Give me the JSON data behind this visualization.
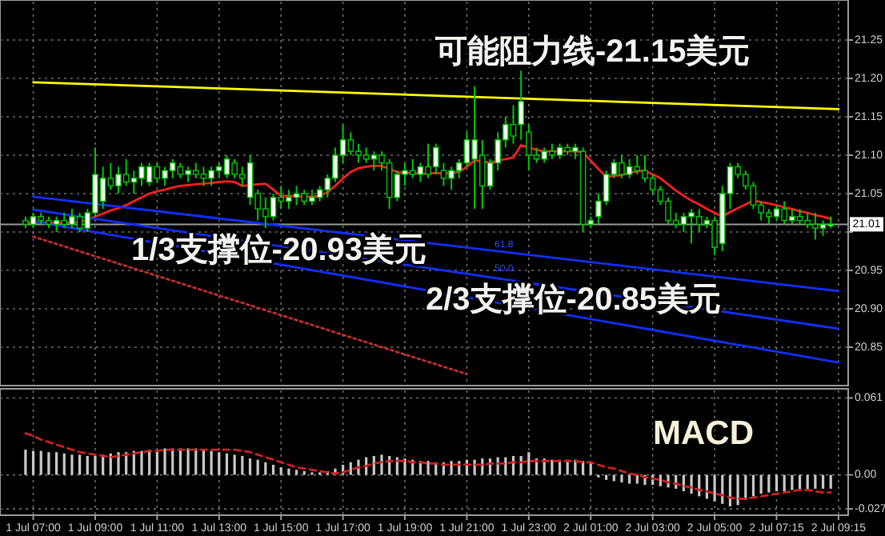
{
  "chart_data": [
    {
      "type": "candlestick",
      "color": "#00c800",
      "categories": [
        null,
        "1 Jul 07:00",
        null,
        null,
        null,
        null,
        null,
        null,
        null,
        "1 Jul 09:00",
        null,
        null,
        null,
        null,
        null,
        null,
        null,
        "1 Jul 11:00",
        null,
        null,
        null,
        null,
        null,
        null,
        null,
        "1 Jul 13:00",
        null,
        null,
        null,
        null,
        null,
        null,
        null,
        "1 Jul 15:00",
        null,
        null,
        null,
        null,
        null,
        null,
        null,
        "1 Jul 17:00",
        null,
        null,
        null,
        null,
        null,
        null,
        null,
        "1 Jul 19:00",
        null,
        null,
        null,
        null,
        null,
        null,
        null,
        "1 Jul 21:00",
        null,
        null,
        null,
        null,
        null,
        null,
        null,
        "1 Jul 23:00",
        null,
        null,
        null,
        null,
        null,
        null,
        null,
        "2 Jul 01:00",
        null,
        null,
        null,
        null,
        null,
        null,
        null,
        "2 Jul 03:00",
        null,
        null,
        null,
        null,
        null,
        null,
        null,
        "2 Jul 05:00",
        null,
        null,
        null,
        null,
        null,
        null,
        null,
        "2 Jul 07:15",
        null,
        null,
        null,
        null,
        null,
        null,
        null,
        "2 Jul 09:15"
      ],
      "ohlc": [
        [
          21.015,
          21.02,
          21.005,
          21.01
        ],
        [
          21.01,
          21.025,
          21.005,
          21.02
        ],
        [
          21.02,
          21.025,
          21.01,
          21.015
        ],
        [
          21.015,
          21.02,
          21.005,
          21.01
        ],
        [
          21.01,
          21.02,
          21.0,
          21.015
        ],
        [
          21.015,
          21.025,
          21.005,
          21.01
        ],
        [
          21.01,
          21.03,
          21.005,
          21.02
        ],
        [
          21.02,
          21.025,
          21.0,
          21.005
        ],
        [
          21.005,
          21.03,
          21.0,
          21.025
        ],
        [
          21.025,
          21.11,
          21.02,
          21.075
        ],
        [
          21.04,
          21.085,
          21.03,
          21.07
        ],
        [
          21.07,
          21.09,
          21.055,
          21.06
        ],
        [
          21.06,
          21.085,
          21.05,
          21.075
        ],
        [
          21.075,
          21.095,
          21.06,
          21.065
        ],
        [
          21.065,
          21.08,
          21.05,
          21.07
        ],
        [
          21.07,
          21.09,
          21.06,
          21.085
        ],
        [
          21.065,
          21.09,
          21.06,
          21.085
        ],
        [
          21.085,
          21.09,
          21.065,
          21.07
        ],
        [
          21.07,
          21.085,
          21.06,
          21.08
        ],
        [
          21.08,
          21.095,
          21.07,
          21.09
        ],
        [
          21.085,
          21.09,
          21.07,
          21.075
        ],
        [
          21.075,
          21.085,
          21.065,
          21.08
        ],
        [
          21.08,
          21.09,
          21.07,
          21.075
        ],
        [
          21.075,
          21.085,
          21.06,
          21.07
        ],
        [
          21.07,
          21.085,
          21.06,
          21.08
        ],
        [
          21.08,
          21.09,
          21.07,
          21.085
        ],
        [
          21.075,
          21.1,
          21.07,
          21.095
        ],
        [
          21.09,
          21.095,
          21.07,
          21.075
        ],
        [
          21.075,
          21.085,
          21.06,
          21.07
        ],
        [
          21.045,
          21.1,
          21.035,
          21.09
        ],
        [
          21.05,
          21.055,
          21.015,
          21.03
        ],
        [
          21.03,
          21.045,
          21.005,
          21.02
        ],
        [
          21.02,
          21.05,
          21.015,
          21.045
        ],
        [
          21.045,
          21.06,
          21.03,
          21.04
        ],
        [
          21.04,
          21.055,
          21.03,
          21.045
        ],
        [
          21.045,
          21.06,
          21.035,
          21.05
        ],
        [
          21.05,
          21.055,
          21.035,
          21.04
        ],
        [
          21.04,
          21.055,
          21.035,
          21.045
        ],
        [
          21.045,
          21.06,
          21.04,
          21.055
        ],
        [
          21.055,
          21.075,
          21.045,
          21.07
        ],
        [
          21.07,
          21.11,
          21.065,
          21.1
        ],
        [
          21.1,
          21.14,
          21.09,
          21.12
        ],
        [
          21.12,
          21.13,
          21.1,
          21.105
        ],
        [
          21.105,
          21.115,
          21.09,
          21.1
        ],
        [
          21.1,
          21.11,
          21.09,
          21.095
        ],
        [
          21.095,
          21.105,
          21.08,
          21.1
        ],
        [
          21.1,
          21.105,
          21.08,
          21.09
        ],
        [
          21.09,
          21.095,
          21.03,
          21.045
        ],
        [
          21.045,
          21.08,
          21.04,
          21.075
        ],
        [
          21.075,
          21.09,
          21.06,
          21.08
        ],
        [
          21.08,
          21.095,
          21.07,
          21.075
        ],
        [
          21.075,
          21.09,
          21.065,
          21.085
        ],
        [
          21.085,
          21.115,
          21.07,
          21.075
        ],
        [
          21.085,
          21.115,
          21.075,
          21.11
        ],
        [
          21.08,
          21.09,
          21.06,
          21.07
        ],
        [
          21.07,
          21.085,
          21.055,
          21.08
        ],
        [
          21.08,
          21.095,
          21.07,
          21.09
        ],
        [
          21.09,
          21.13,
          21.085,
          21.12
        ],
        [
          21.095,
          21.19,
          21.03,
          21.12
        ],
        [
          21.1,
          21.12,
          21.03,
          21.06
        ],
        [
          21.06,
          21.095,
          21.055,
          21.09
        ],
        [
          21.09,
          21.13,
          21.08,
          21.12
        ],
        [
          21.12,
          21.15,
          21.11,
          21.14
        ],
        [
          21.14,
          21.165,
          21.115,
          21.125
        ],
        [
          21.14,
          21.21,
          21.12,
          21.17
        ],
        [
          21.13,
          21.14,
          21.08,
          21.1
        ],
        [
          21.1,
          21.11,
          21.09,
          21.095
        ],
        [
          21.095,
          21.11,
          21.09,
          21.105
        ],
        [
          21.105,
          21.115,
          21.095,
          21.1
        ],
        [
          21.1,
          21.115,
          21.095,
          21.11
        ],
        [
          21.11,
          21.115,
          21.1,
          21.105
        ],
        [
          21.105,
          21.115,
          21.095,
          21.11
        ],
        [
          21.105,
          21.11,
          21.0,
          21.01
        ],
        [
          21.01,
          21.02,
          21.005,
          21.015
        ],
        [
          21.02,
          21.05,
          21.01,
          21.04
        ],
        [
          21.04,
          21.08,
          21.035,
          21.075
        ],
        [
          21.075,
          21.095,
          21.07,
          21.09
        ],
        [
          21.09,
          21.1,
          21.07,
          21.075
        ],
        [
          21.075,
          21.095,
          21.07,
          21.085
        ],
        [
          21.085,
          21.1,
          21.075,
          21.08
        ],
        [
          21.08,
          21.1,
          21.065,
          21.07
        ],
        [
          21.07,
          21.075,
          21.05,
          21.055
        ],
        [
          21.055,
          21.06,
          21.035,
          21.04
        ],
        [
          21.04,
          21.045,
          21.01,
          21.015
        ],
        [
          21.015,
          21.025,
          21.005,
          21.01
        ],
        [
          21.01,
          21.025,
          21.0,
          21.02
        ],
        [
          21.02,
          21.03,
          20.985,
          21.025
        ],
        [
          21.02,
          21.03,
          21.0,
          21.01
        ],
        [
          21.01,
          21.02,
          21.005,
          21.015
        ],
        [
          21.015,
          21.02,
          20.97,
          20.98
        ],
        [
          20.985,
          21.06,
          20.975,
          21.05
        ],
        [
          21.05,
          21.09,
          21.03,
          21.085
        ],
        [
          21.085,
          21.09,
          21.07,
          21.075
        ],
        [
          21.075,
          21.08,
          21.055,
          21.06
        ],
        [
          21.06,
          21.065,
          21.03,
          21.035
        ],
        [
          21.035,
          21.04,
          21.015,
          21.025
        ],
        [
          21.025,
          21.03,
          21.01,
          21.02
        ],
        [
          21.02,
          21.035,
          21.015,
          21.03
        ],
        [
          21.03,
          21.04,
          21.01,
          21.015
        ],
        [
          21.015,
          21.03,
          21.01,
          21.02
        ],
        [
          21.02,
          21.03,
          21.01,
          21.015
        ],
        [
          21.015,
          21.025,
          21.005,
          21.01
        ],
        [
          21.01,
          21.025,
          20.99,
          21.005
        ],
        [
          21.005,
          21.015,
          20.995,
          21.01
        ],
        [
          21.01,
          21.02,
          21.005,
          21.01
        ],
        null
      ],
      "series": [
        {
          "type": "line",
          "color": "#ff2020",
          "values": [
            21.012,
            21.012,
            21.012,
            21.012,
            21.012,
            21.012,
            21.012,
            21.013,
            21.016,
            21.02,
            21.024,
            21.028,
            21.031,
            21.035,
            21.04,
            21.045,
            21.05,
            21.053,
            21.055,
            21.058,
            21.06,
            21.061,
            21.062,
            21.063,
            21.064,
            21.065,
            21.066,
            21.065,
            21.06,
            21.061,
            21.062,
            21.063,
            21.055,
            21.047,
            21.047,
            21.047,
            21.046,
            21.046,
            21.047,
            21.052,
            21.06,
            21.07,
            21.078,
            21.083,
            21.085,
            21.086,
            21.086,
            21.082,
            21.078,
            21.077,
            21.077,
            21.076,
            21.076,
            21.077,
            21.076,
            21.077,
            21.078,
            21.085,
            21.093,
            21.092,
            21.09,
            21.093,
            21.095,
            21.097,
            21.113,
            21.11,
            21.107,
            21.105,
            21.105,
            21.105,
            21.105,
            21.105,
            21.104,
            21.093,
            21.082,
            21.072,
            21.073,
            21.074,
            21.077,
            21.079,
            21.08,
            21.075,
            21.07,
            21.062,
            21.054,
            21.047,
            21.041,
            21.036,
            21.03,
            21.025,
            21.02,
            21.026,
            21.031,
            21.036,
            21.041,
            21.039,
            21.037,
            21.035,
            21.032,
            21.03,
            21.027,
            21.025,
            21.022,
            21.02,
            21.017,
            null
          ]
        },
        {
          "type": "line",
          "color": "#ffff00",
          "x": [
            "1 Jul 07:00",
            "2 Jul 09:15"
          ],
          "values": [
            21.195,
            21.16
          ]
        },
        {
          "type": "line",
          "color": "#1030ff",
          "x": [
            "1 Jul 07:00",
            "2 Jul 09:15"
          ],
          "values": [
            21.046,
            20.923
          ]
        },
        {
          "type": "line",
          "color": "#1030ff",
          "x": [
            "1 Jul 07:00",
            "2 Jul 09:15"
          ],
          "values": [
            21.029,
            20.874
          ]
        },
        {
          "type": "line",
          "color": "#1030ff",
          "x": [
            "1 Jul 07:00",
            "2 Jul 09:15"
          ],
          "values": [
            21.014,
            20.83
          ]
        },
        {
          "type": "line",
          "color": "#c03030",
          "line_style": "dotted",
          "x": [
            "1 Jul 07:00",
            "1 Jul 21:00"
          ],
          "values": [
            20.994,
            20.815
          ]
        }
      ],
      "ylim": [
        20.8,
        21.3
      ],
      "yticks": [
        20.85,
        {
          "value": 20.9,
          "label": "20.90"
        },
        20.95,
        {
          "value": 21.0,
          "label": null
        },
        21.05,
        {
          "value": 21.1,
          "label": "21.10"
        },
        21.15,
        {
          "value": 21.2,
          "label": "21.20"
        },
        21.25
      ],
      "grid": true,
      "tick_labels": "y",
      "ref_lines": [
        {
          "axis": "y",
          "value": 21.01,
          "label": "21.01",
          "color": "#9a9a9a"
        }
      ],
      "annotations": [
        "可能阻力线-21.15美元",
        "1/3支撑位-20.93美元",
        "2/3支撑位-20.85美元",
        "61.8",
        "50.0"
      ]
    },
    {
      "type": "bar",
      "categories": [
        null,
        "1 Jul 07:00",
        null,
        null,
        null,
        null,
        null,
        null,
        null,
        "1 Jul 09:00",
        null,
        null,
        null,
        null,
        null,
        null,
        null,
        "1 Jul 11:00",
        null,
        null,
        null,
        null,
        null,
        null,
        null,
        "1 Jul 13:00",
        null,
        null,
        null,
        null,
        null,
        null,
        null,
        "1 Jul 15:00",
        null,
        null,
        null,
        null,
        null,
        null,
        null,
        "1 Jul 17:00",
        null,
        null,
        null,
        null,
        null,
        null,
        null,
        "1 Jul 19:00",
        null,
        null,
        null,
        null,
        null,
        null,
        null,
        "1 Jul 21:00",
        null,
        null,
        null,
        null,
        null,
        null,
        null,
        "1 Jul 23:00",
        null,
        null,
        null,
        null,
        null,
        null,
        null,
        "2 Jul 01:00",
        null,
        null,
        null,
        null,
        null,
        null,
        null,
        "2 Jul 03:00",
        null,
        null,
        null,
        null,
        null,
        null,
        null,
        "2 Jul 05:00",
        null,
        null,
        null,
        null,
        null,
        null,
        null,
        "2 Jul 07:15",
        null,
        null,
        null,
        null,
        null,
        null,
        null,
        "2 Jul 09:15"
      ],
      "series": [
        {
          "type": "bar",
          "color": "#c8c8c8",
          "values": [
            0.02,
            0.019,
            0.019,
            0.018,
            0.018,
            0.017,
            0.016,
            0.016,
            0.015,
            0.015,
            0.016,
            0.017,
            0.018,
            0.018,
            0.019,
            0.019,
            0.02,
            0.02,
            0.021,
            0.021,
            0.021,
            0.021,
            0.021,
            0.02,
            0.019,
            0.018,
            0.017,
            0.016,
            0.015,
            0.013,
            0.012,
            0.01,
            0.008,
            0.006,
            0.005,
            0.004,
            0.003,
            0.002,
            0.002,
            0.003,
            0.005,
            0.008,
            0.01,
            0.012,
            0.014,
            0.015,
            0.016,
            0.015,
            0.014,
            0.013,
            0.012,
            0.011,
            0.011,
            0.01,
            0.01,
            0.011,
            0.011,
            0.012,
            0.012,
            0.013,
            0.013,
            0.014,
            0.014,
            0.015,
            0.015,
            0.018,
            0.013,
            0.013,
            0.012,
            0.012,
            0.012,
            0.012,
            0.011,
            0.01,
            -0.002,
            -0.004,
            -0.005,
            -0.006,
            -0.007,
            -0.007,
            -0.008,
            -0.008,
            -0.009,
            -0.01,
            -0.011,
            -0.013,
            -0.015,
            -0.017,
            -0.019,
            -0.021,
            -0.023,
            -0.025,
            -0.024,
            -0.02,
            -0.017,
            -0.015,
            -0.014,
            -0.013,
            -0.013,
            -0.012,
            -0.012,
            -0.012,
            -0.011,
            -0.011,
            -0.011,
            null
          ]
        },
        {
          "type": "line",
          "color": "#d02020",
          "line_style": "dashed",
          "values": [
            0.033,
            0.031,
            0.028,
            0.026,
            0.024,
            0.022,
            0.02,
            0.018,
            0.017,
            0.016,
            0.015,
            0.014,
            0.015,
            0.016,
            0.017,
            0.018,
            0.019,
            0.019,
            0.02,
            0.02,
            0.02,
            0.02,
            0.02,
            0.02,
            0.02,
            0.02,
            0.02,
            0.02,
            0.019,
            0.018,
            0.016,
            0.014,
            0.012,
            0.01,
            0.008,
            0.006,
            0.005,
            0.004,
            0.003,
            0.002,
            0.001,
            0.002,
            0.004,
            0.006,
            0.007,
            0.009,
            0.01,
            0.011,
            0.011,
            0.011,
            0.01,
            0.01,
            0.009,
            0.009,
            0.008,
            0.008,
            0.008,
            0.008,
            0.008,
            0.008,
            0.009,
            0.009,
            0.009,
            0.01,
            0.01,
            0.011,
            0.011,
            0.011,
            0.011,
            0.011,
            0.011,
            0.011,
            0.01,
            0.01,
            0.008,
            0.006,
            0.005,
            0.003,
            0.001,
            0.0,
            -0.002,
            -0.003,
            -0.004,
            -0.006,
            -0.007,
            -0.009,
            -0.01,
            -0.012,
            -0.013,
            -0.015,
            -0.016,
            -0.018,
            -0.019,
            -0.019,
            -0.018,
            -0.017,
            -0.016,
            -0.015,
            -0.014,
            -0.013,
            -0.012,
            -0.012,
            -0.013,
            -0.014,
            -0.014,
            null
          ]
        }
      ],
      "ylim": [
        -0.032,
        0.067
      ],
      "yticks": [
        0.061,
        {
          "value": 0,
          "label": "0.00"
        },
        -0.027
      ],
      "grid": true,
      "annotations": [
        "MACD"
      ]
    }
  ]
}
